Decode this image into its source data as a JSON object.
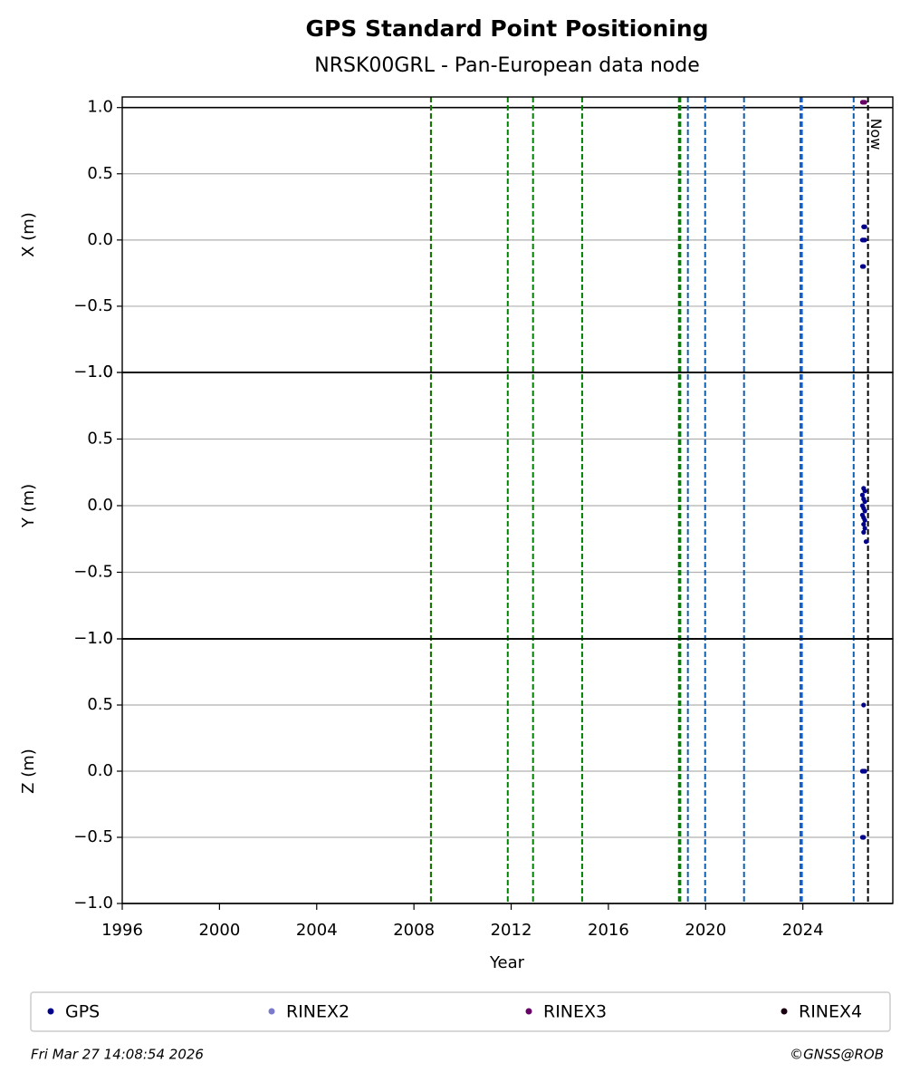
{
  "chart_data": {
    "type": "scatter",
    "title": "GPS Standard Point Positioning",
    "subtitle": "NRSK00GRL - Pan-European data node",
    "xlabel": "Year",
    "xlim": [
      1996,
      2027.7
    ],
    "xticks": [
      1996,
      2000,
      2004,
      2008,
      2012,
      2016,
      2020,
      2024
    ],
    "grid": true,
    "events": [
      {
        "x": 2008.7,
        "color": "#dd0000"
      },
      {
        "x": 2008.7,
        "color": "#008000"
      },
      {
        "x": 2011.86,
        "color": "#008000"
      },
      {
        "x": 2012.9,
        "color": "#008000"
      },
      {
        "x": 2014.92,
        "color": "#008000"
      },
      {
        "x": 2018.9,
        "color": "#008000"
      },
      {
        "x": 2018.96,
        "color": "#008000"
      },
      {
        "x": 2019.27,
        "color": "#1060b0"
      },
      {
        "x": 2019.98,
        "color": "#1060b0"
      },
      {
        "x": 2021.58,
        "color": "#1060b0"
      },
      {
        "x": 2023.9,
        "color": "#1060d0"
      },
      {
        "x": 2023.96,
        "color": "#1060d0"
      },
      {
        "x": 2026.09,
        "color": "#1060b0"
      },
      {
        "x": 2026.68,
        "color": "#000000",
        "label": "Now"
      }
    ],
    "panels": [
      {
        "ylabel": "X (m)",
        "ylim": [
          -1,
          1.08
        ],
        "yticks": [
          {
            "value": -1,
            "label": "−1.0"
          },
          {
            "value": -0.5,
            "label": "−0.5"
          },
          {
            "value": 0,
            "label": "0.0"
          },
          0.5,
          {
            "value": 1,
            "label": "1.0"
          }
        ],
        "series": [
          {
            "name": "GPS",
            "color": "#00008b",
            "x": [
              2026.5,
              2026.55,
              2026.45,
              2026.5,
              2026.55,
              2026.45,
              2026.5
            ],
            "values": [
              0.1,
              0.1,
              0.0,
              0.0,
              0.0,
              -0.2,
              -0.2
            ]
          },
          {
            "name": "RINEX3",
            "color": "#660066",
            "x": [
              2026.45,
              2026.5,
              2026.55
            ],
            "values": [
              1.04,
              1.04,
              1.04
            ]
          }
        ]
      },
      {
        "ylabel": "Y (m)",
        "ylim": [
          -1,
          1
        ],
        "yticks": [
          {
            "value": -1,
            "label": "−1.0"
          },
          {
            "value": -0.5,
            "label": "−0.5"
          },
          {
            "value": 0,
            "label": "0.0"
          },
          0.5,
          {
            "value": 1,
            "label": "1.0"
          }
        ],
        "series": [
          {
            "name": "GPS",
            "color": "#00008b",
            "x": [
              2026.5,
              2026.55,
              2026.45,
              2026.5,
              2026.55,
              2026.45,
              2026.5,
              2026.55,
              2026.45,
              2026.5,
              2026.55,
              2026.5,
              2026.55,
              2026.5,
              2026.6
            ],
            "values": [
              0.13,
              0.11,
              0.08,
              0.05,
              0.03,
              0.0,
              -0.02,
              -0.04,
              -0.07,
              -0.09,
              -0.11,
              -0.14,
              -0.17,
              -0.2,
              -0.27
            ]
          }
        ]
      },
      {
        "ylabel": "Z (m)",
        "ylim": [
          -1,
          1
        ],
        "yticks": [
          {
            "value": -1,
            "label": "−1.0"
          },
          {
            "value": -0.5,
            "label": "−0.5"
          },
          {
            "value": 0,
            "label": "0.0"
          },
          0.5,
          {
            "value": 1,
            "label": "1.0"
          }
        ],
        "series": [
          {
            "name": "GPS",
            "color": "#00008b",
            "x": [
              2026.5,
              2026.45,
              2026.5,
              2026.55,
              2026.45,
              2026.5
            ],
            "values": [
              0.5,
              0.0,
              0.0,
              0.0,
              -0.5,
              -0.5
            ]
          }
        ]
      }
    ],
    "legend": [
      {
        "name": "GPS",
        "color": "#00008b"
      },
      {
        "name": "RINEX2",
        "color": "#7b7bcc"
      },
      {
        "name": "RINEX3",
        "color": "#660066"
      },
      {
        "name": "RINEX4",
        "color": "#1a0010"
      }
    ],
    "timestamp": "Fri Mar 27 14:08:54 2026",
    "credit": "©GNSS@ROB"
  }
}
